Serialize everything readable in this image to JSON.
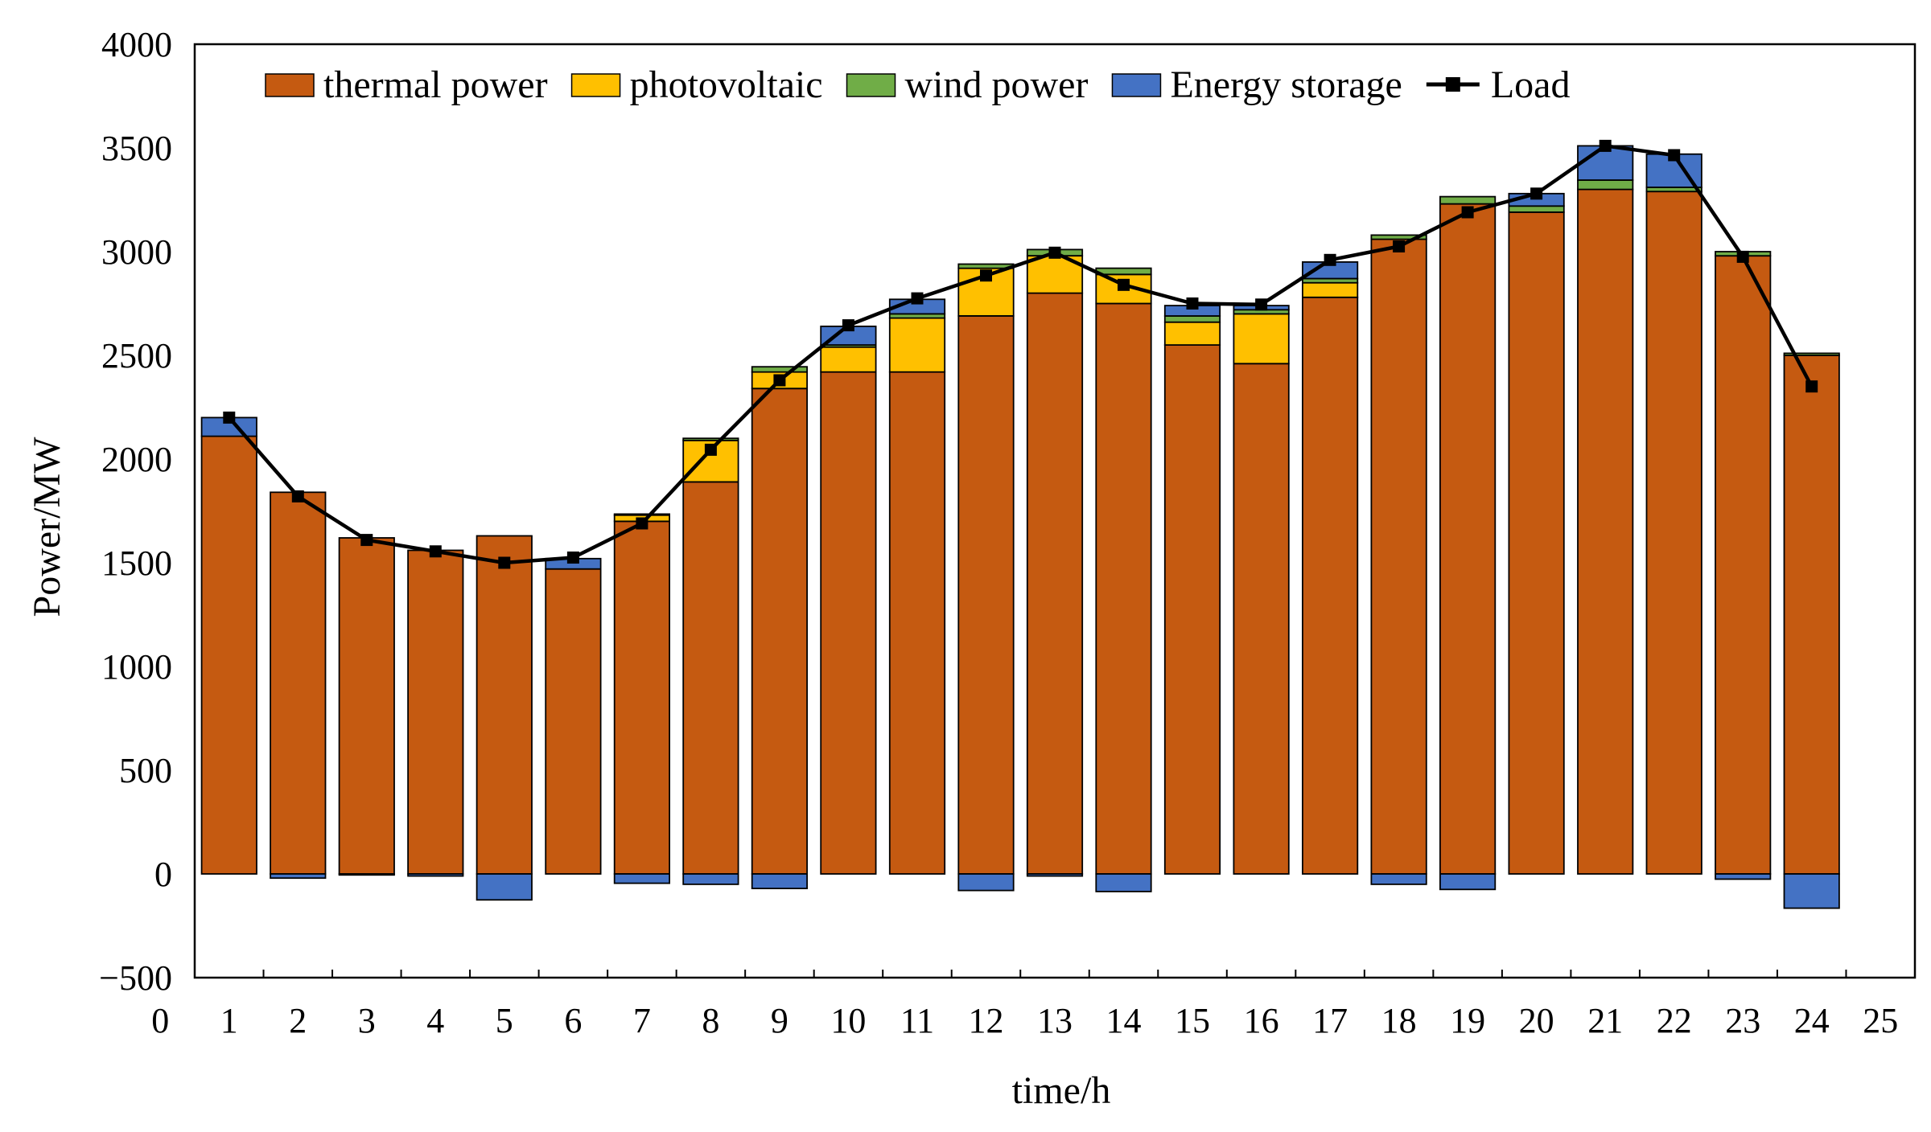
{
  "chart_data": {
    "type": "bar",
    "stacked": true,
    "xlabel": "time/h",
    "ylabel": "Power/MW",
    "ylim": [
      -500,
      4000
    ],
    "yticks": [
      -500,
      0,
      500,
      1000,
      1500,
      2000,
      2500,
      3000,
      3500,
      4000
    ],
    "ytick_labels": [
      "−500",
      "0",
      "500",
      "1000",
      "1500",
      "2000",
      "2500",
      "3000",
      "3500",
      "4000"
    ],
    "xlim": [
      0,
      25
    ],
    "xticks": [
      0,
      1,
      2,
      3,
      4,
      5,
      6,
      7,
      8,
      9,
      10,
      11,
      12,
      13,
      14,
      15,
      16,
      17,
      18,
      19,
      20,
      21,
      22,
      23,
      24,
      25
    ],
    "xtick_labels": [
      "0",
      "1",
      "2",
      "3",
      "4",
      "5",
      "6",
      "7",
      "8",
      "9",
      "10",
      "11",
      "12",
      "13",
      "14",
      "15",
      "16",
      "17",
      "18",
      "19",
      "20",
      "21",
      "22",
      "23",
      "24",
      "25"
    ],
    "legend_position": "top-left inside",
    "categories": [
      1,
      2,
      3,
      4,
      5,
      6,
      7,
      8,
      9,
      10,
      11,
      12,
      13,
      14,
      15,
      16,
      17,
      18,
      19,
      20,
      21,
      22,
      23,
      24
    ],
    "series": [
      {
        "name": "thermal power",
        "kind": "bar",
        "color": "#c55a11",
        "values": [
          2110,
          1840,
          1620,
          1560,
          1630,
          1470,
          1700,
          1890,
          2340,
          2420,
          2420,
          2690,
          2800,
          2750,
          2550,
          2460,
          2780,
          3060,
          3230,
          3190,
          3300,
          3290,
          2980,
          2500
        ]
      },
      {
        "name": "photovoltaic",
        "kind": "bar",
        "color": "#ffc000",
        "values": [
          0,
          0,
          0,
          0,
          0,
          0,
          30,
          200,
          80,
          120,
          260,
          230,
          180,
          140,
          110,
          240,
          70,
          0,
          0,
          0,
          0,
          0,
          0,
          0
        ]
      },
      {
        "name": "wind power",
        "kind": "bar",
        "color": "#70ad47",
        "values": [
          0,
          0,
          0,
          0,
          0,
          0,
          5,
          10,
          25,
          10,
          20,
          20,
          30,
          30,
          30,
          20,
          20,
          20,
          35,
          30,
          45,
          20,
          20,
          10
        ]
      },
      {
        "name": "Energy storage",
        "kind": "bar",
        "color": "#4472c4",
        "values": [
          90,
          -20,
          -5,
          -10,
          -125,
          50,
          -45,
          -50,
          -70,
          90,
          70,
          -80,
          -10,
          -85,
          50,
          20,
          80,
          -50,
          -75,
          60,
          165,
          160,
          -25,
          -165
        ]
      },
      {
        "name": "Load",
        "kind": "line",
        "color": "#000000",
        "values": [
          2200,
          1820,
          1610,
          1555,
          1500,
          1525,
          1690,
          2045,
          2380,
          2645,
          2775,
          2885,
          2995,
          2840,
          2750,
          2745,
          2960,
          3025,
          3190,
          3280,
          3510,
          3465,
          2975,
          2350
        ]
      }
    ]
  }
}
